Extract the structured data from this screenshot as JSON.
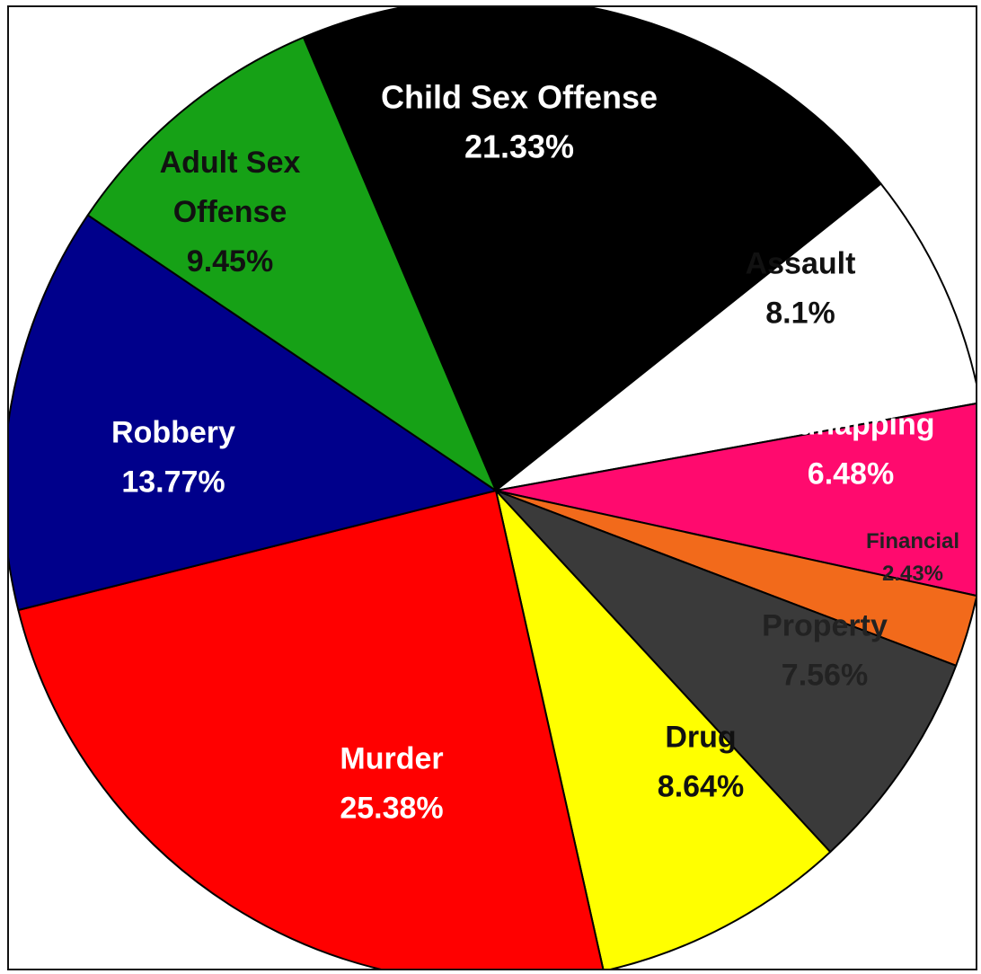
{
  "chart_data": {
    "type": "pie",
    "title": "",
    "slices": [
      {
        "label": [
          "Child Sex Offense"
        ],
        "value_label": "21.33%",
        "value": 21.33,
        "color": "#000000",
        "text_color": "#ffffff"
      },
      {
        "label": [
          "Assault"
        ],
        "value_label": "8.1%",
        "value": 8.1,
        "color": "#ffffff",
        "text_color": "#111111"
      },
      {
        "label": [
          "Kidnapping"
        ],
        "value_label": "6.48%",
        "value": 6.48,
        "color": "#ff0a6e",
        "text_color": "#ffffff"
      },
      {
        "label": [
          "Financial"
        ],
        "value_label": "2.43%",
        "value": 2.43,
        "color": "#f26a1b",
        "text_color": "#222222"
      },
      {
        "label": [
          "Property"
        ],
        "value_label": "7.56%",
        "value": 7.56,
        "color": "#3a3a3a",
        "text_color": "#222222"
      },
      {
        "label": [
          "Drug"
        ],
        "value_label": "8.64%",
        "value": 8.64,
        "color": "#ffff00",
        "text_color": "#111111"
      },
      {
        "label": [
          "Murder"
        ],
        "value_label": "25.38%",
        "value": 25.38,
        "color": "#ff0000",
        "text_color": "#ffffff"
      },
      {
        "label": [
          "Robbery"
        ],
        "value_label": "13.77%",
        "value": 13.77,
        "color": "#00008b",
        "text_color": "#ffffff"
      },
      {
        "label": [
          "Adult Sex",
          "Offense"
        ],
        "value_label": "9.45%",
        "value": 9.45,
        "color": "#16a116",
        "text_color": "#111111"
      }
    ],
    "start_angle_deg": -113,
    "direction": "clockwise"
  }
}
